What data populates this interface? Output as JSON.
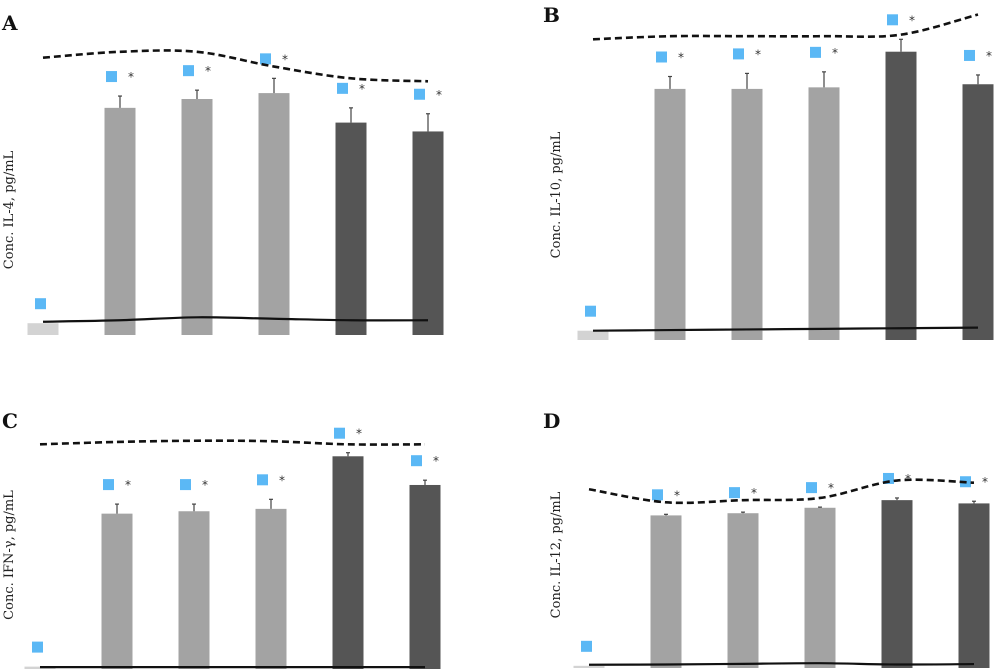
{
  "colors": {
    "control": "#d3d3d3",
    "light": "#a3a3a3",
    "dark": "#555555",
    "marker": "#5bb8f5",
    "curve": "#111111"
  },
  "chart_data": [
    {
      "type": "bar",
      "label": "A",
      "ylabel": "Conc. IL-4, pg/mL",
      "values": [
        4,
        77,
        80,
        82,
        72,
        69
      ],
      "errors": [
        0,
        4,
        3,
        5,
        5,
        6
      ],
      "shades": [
        "control",
        "light",
        "light",
        "light",
        "dark",
        "dark"
      ],
      "markers": [
        true,
        true,
        true,
        true,
        true,
        true
      ],
      "stars": [
        "",
        "*",
        "*",
        "*",
        "*",
        "*"
      ],
      "top_curve": [
        94,
        96,
        96,
        91,
        87,
        86
      ],
      "bottom_curve": [
        4.5,
        5,
        6,
        5.5,
        5,
        5
      ]
    },
    {
      "type": "bar",
      "label": "B",
      "ylabel": "Conc. IL-10, pg/mL",
      "values": [
        3,
        81,
        81,
        81.5,
        93,
        82.5
      ],
      "errors": [
        0,
        4,
        5,
        5,
        4,
        3
      ],
      "shades": [
        "control",
        "light",
        "light",
        "light",
        "dark",
        "dark"
      ],
      "markers": [
        true,
        true,
        true,
        true,
        true,
        true
      ],
      "stars": [
        "",
        "*",
        "*",
        "*",
        "*",
        "*"
      ],
      "top_curve": [
        97,
        98,
        98,
        98,
        98.5,
        105
      ],
      "bottom_curve": [
        3,
        3.2,
        3.4,
        3.6,
        3.8,
        4
      ]
    },
    {
      "type": "bar",
      "label": "C",
      "ylabel": "Conc. IFN-γ, pg/mL",
      "values": [
        1,
        65,
        66,
        67,
        89,
        77
      ],
      "errors": [
        0,
        4,
        3,
        4,
        1.5,
        2
      ],
      "shades": [
        "control",
        "light",
        "light",
        "light",
        "dark",
        "dark"
      ],
      "markers": [
        true,
        true,
        true,
        true,
        true,
        true
      ],
      "stars": [
        "",
        "*",
        "*",
        "*",
        "*",
        "*"
      ],
      "top_curve": [
        94,
        95,
        95.5,
        95.3,
        94,
        94
      ],
      "bottom_curve": [
        0.8,
        0.8,
        0.8,
        0.8,
        0.8,
        0.8
      ]
    },
    {
      "type": "bar",
      "label": "D",
      "ylabel": "Conc. IL-12, pg/mL",
      "values": [
        1,
        70,
        71,
        73.5,
        77,
        75.5
      ],
      "errors": [
        0,
        0.5,
        0.5,
        0.3,
        1,
        1
      ],
      "shades": [
        "control",
        "light",
        "light",
        "light",
        "dark",
        "dark"
      ],
      "markers": [
        true,
        true,
        true,
        true,
        true,
        true
      ],
      "stars": [
        "",
        "*",
        "*",
        "*",
        "*",
        "*"
      ],
      "top_curve": [
        82,
        76,
        77,
        78,
        86,
        85
      ],
      "bottom_curve": [
        1.5,
        1.6,
        1.9,
        2.2,
        1.6,
        1.8
      ]
    }
  ]
}
